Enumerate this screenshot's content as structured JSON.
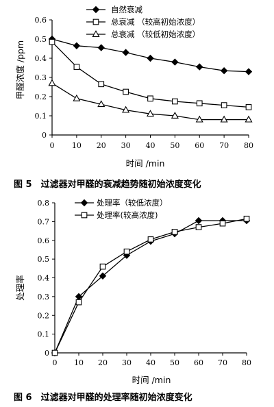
{
  "chart_data": [
    {
      "type": "line",
      "x": [
        0,
        10,
        20,
        30,
        40,
        50,
        60,
        70,
        80
      ],
      "xlabel": "时间 /min",
      "ylabel": "甲醛浓度 /ppm",
      "xlim": [
        0,
        80
      ],
      "ylim": [
        0,
        0.6
      ],
      "xticks": [
        "0",
        "10",
        "20",
        "30",
        "40",
        "50",
        "60",
        "70",
        "80"
      ],
      "yticks": [
        "0",
        "0.1",
        "0.2",
        "0.3",
        "0.4",
        "0.5",
        "0.6"
      ],
      "grid": false,
      "legend_position": "top-right",
      "series": [
        {
          "name": "自然衰减",
          "marker": "filled-diamond",
          "values": [
            0.5,
            0.465,
            0.455,
            0.43,
            0.4,
            0.38,
            0.355,
            0.335,
            0.33
          ]
        },
        {
          "name": "总衰减 （较高初始浓度）",
          "marker": "open-square",
          "values": [
            0.485,
            0.355,
            0.265,
            0.225,
            0.19,
            0.175,
            0.165,
            0.155,
            0.145
          ]
        },
        {
          "name": "总衰减 （较低初始浓度）",
          "marker": "open-triangle",
          "values": [
            0.27,
            0.19,
            0.16,
            0.13,
            0.11,
            0.1,
            0.08,
            0.08,
            0.08
          ]
        }
      ],
      "caption": "图 5　过滤器对甲醛的衰减趋势随初始浓度变化"
    },
    {
      "type": "line",
      "x": [
        0,
        10,
        20,
        30,
        40,
        50,
        60,
        70,
        80
      ],
      "xlabel": "时间 /min",
      "ylabel": "处理率",
      "xlim": [
        0,
        80
      ],
      "ylim": [
        0,
        0.8
      ],
      "xticks": [
        "0",
        "10",
        "20",
        "30",
        "40",
        "50",
        "60",
        "70",
        "80"
      ],
      "yticks": [
        "0",
        "0.1",
        "0.2",
        "0.3",
        "0.4",
        "0.5",
        "0.6",
        "0.7",
        "0.8"
      ],
      "grid": false,
      "legend_position": "top-left",
      "series": [
        {
          "name": "处理率（较低浓度）",
          "marker": "filled-diamond",
          "values": [
            0,
            0.3,
            0.41,
            0.52,
            0.595,
            0.635,
            0.705,
            0.705,
            0.705
          ]
        },
        {
          "name": "处理率(较高浓度)",
          "marker": "open-square",
          "values": [
            0,
            0.27,
            0.46,
            0.54,
            0.605,
            0.645,
            0.67,
            0.69,
            0.715
          ]
        }
      ],
      "caption": "图 6　过滤器对甲醛的处理率随初始浓度变化"
    }
  ]
}
